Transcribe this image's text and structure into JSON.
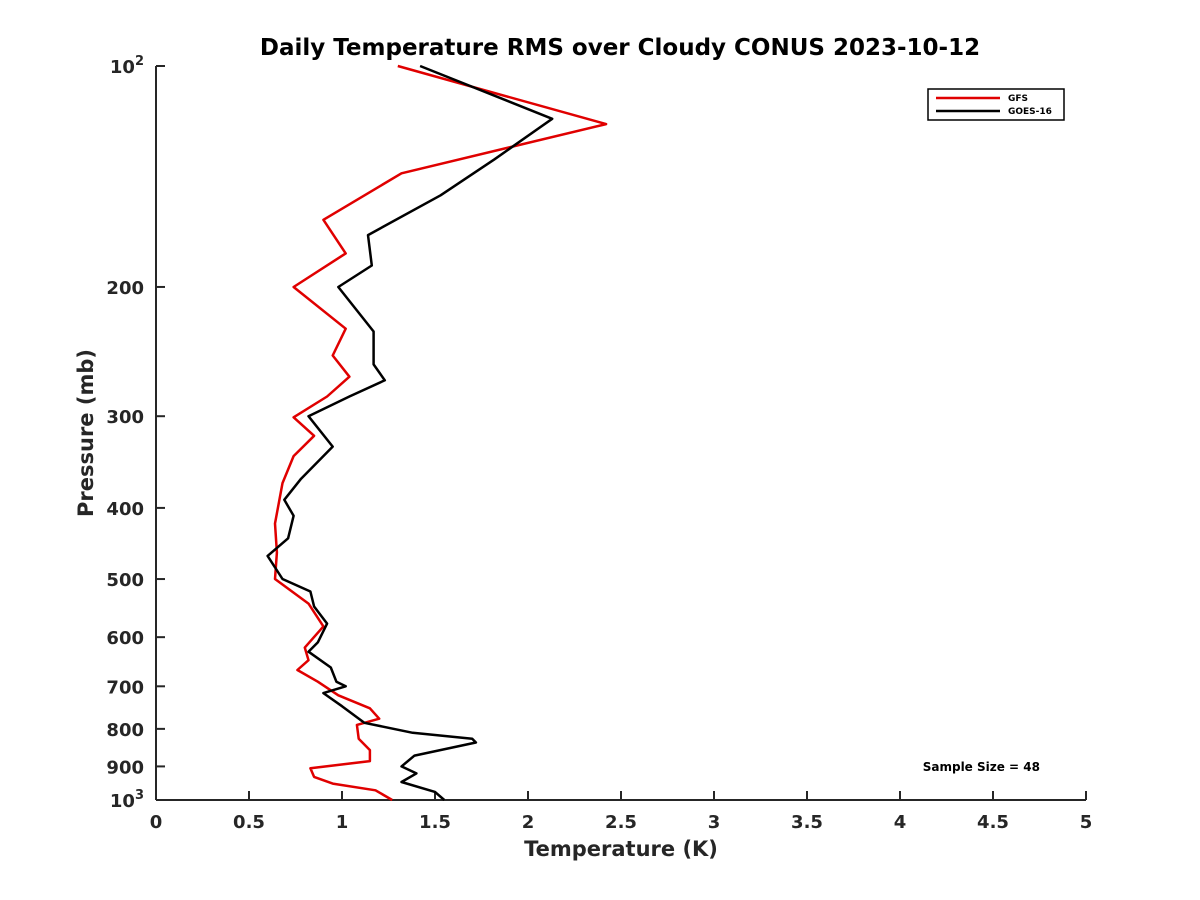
{
  "chart_data": {
    "type": "line",
    "title": "Daily Temperature RMS over Cloudy CONUS 2023-10-12",
    "xlabel": "Temperature (K)",
    "ylabel": "Pressure (mb)",
    "xlim": [
      0,
      5
    ],
    "ylim": [
      100,
      1000
    ],
    "yscale": "log",
    "y_reversed": true,
    "x_ticks": [
      0,
      0.5,
      1,
      1.5,
      2,
      2.5,
      3,
      3.5,
      4,
      4.5,
      5
    ],
    "x_tick_labels": [
      "0",
      "0.5",
      "1",
      "1.5",
      "2",
      "2.5",
      "3",
      "3.5",
      "4",
      "4.5",
      "5"
    ],
    "y_ticks": [
      100,
      200,
      300,
      400,
      500,
      600,
      700,
      800,
      900,
      1000
    ],
    "y_tick_labels": [
      {
        "base": "10",
        "exp": "2"
      },
      {
        "base": "200"
      },
      {
        "base": "300"
      },
      {
        "base": "400"
      },
      {
        "base": "500"
      },
      {
        "base": "600"
      },
      {
        "base": "700"
      },
      {
        "base": "800"
      },
      {
        "base": "900"
      },
      {
        "base": "10",
        "exp": "3"
      }
    ],
    "legend_position": "top-right",
    "annotation": "Sample Size = 48",
    "series": [
      {
        "name": "GFS",
        "color": "#e00000",
        "points": [
          [
            1.3,
            100
          ],
          [
            2.42,
            120
          ],
          [
            1.32,
            140
          ],
          [
            0.9,
            162
          ],
          [
            1.02,
            180
          ],
          [
            0.74,
            200
          ],
          [
            1.02,
            228
          ],
          [
            0.95,
            248
          ],
          [
            1.04,
            265
          ],
          [
            0.92,
            282
          ],
          [
            0.74,
            301
          ],
          [
            0.85,
            319
          ],
          [
            0.74,
            340
          ],
          [
            0.68,
            370
          ],
          [
            0.64,
            420
          ],
          [
            0.65,
            460
          ],
          [
            0.64,
            500
          ],
          [
            0.82,
            540
          ],
          [
            0.9,
            580
          ],
          [
            0.8,
            620
          ],
          [
            0.82,
            645
          ],
          [
            0.76,
            665
          ],
          [
            0.87,
            690
          ],
          [
            0.98,
            720
          ],
          [
            1.15,
            750
          ],
          [
            1.2,
            775
          ],
          [
            1.08,
            790
          ],
          [
            1.09,
            825
          ],
          [
            1.15,
            855
          ],
          [
            1.15,
            885
          ],
          [
            0.83,
            905
          ],
          [
            0.85,
            930
          ],
          [
            0.95,
            950
          ],
          [
            1.18,
            970
          ],
          [
            1.27,
            1000
          ]
        ]
      },
      {
        "name": "GOES-16",
        "color": "#000000",
        "points": [
          [
            1.42,
            100
          ],
          [
            2.13,
            118
          ],
          [
            1.82,
            134
          ],
          [
            1.53,
            150
          ],
          [
            1.14,
            170
          ],
          [
            1.16,
            187
          ],
          [
            0.98,
            200
          ],
          [
            1.17,
            230
          ],
          [
            1.17,
            255
          ],
          [
            1.23,
            268
          ],
          [
            1.04,
            282
          ],
          [
            0.82,
            300
          ],
          [
            0.95,
            330
          ],
          [
            0.78,
            365
          ],
          [
            0.69,
            390
          ],
          [
            0.74,
            410
          ],
          [
            0.71,
            440
          ],
          [
            0.6,
            465
          ],
          [
            0.68,
            500
          ],
          [
            0.83,
            520
          ],
          [
            0.85,
            545
          ],
          [
            0.92,
            575
          ],
          [
            0.87,
            610
          ],
          [
            0.82,
            628
          ],
          [
            0.94,
            660
          ],
          [
            0.97,
            690
          ],
          [
            1.02,
            700
          ],
          [
            0.9,
            715
          ],
          [
            1.0,
            745
          ],
          [
            1.12,
            785
          ],
          [
            1.38,
            810
          ],
          [
            1.7,
            825
          ],
          [
            1.72,
            835
          ],
          [
            1.39,
            870
          ],
          [
            1.32,
            900
          ],
          [
            1.4,
            920
          ],
          [
            1.32,
            945
          ],
          [
            1.5,
            975
          ],
          [
            1.55,
            1000
          ]
        ]
      }
    ]
  }
}
